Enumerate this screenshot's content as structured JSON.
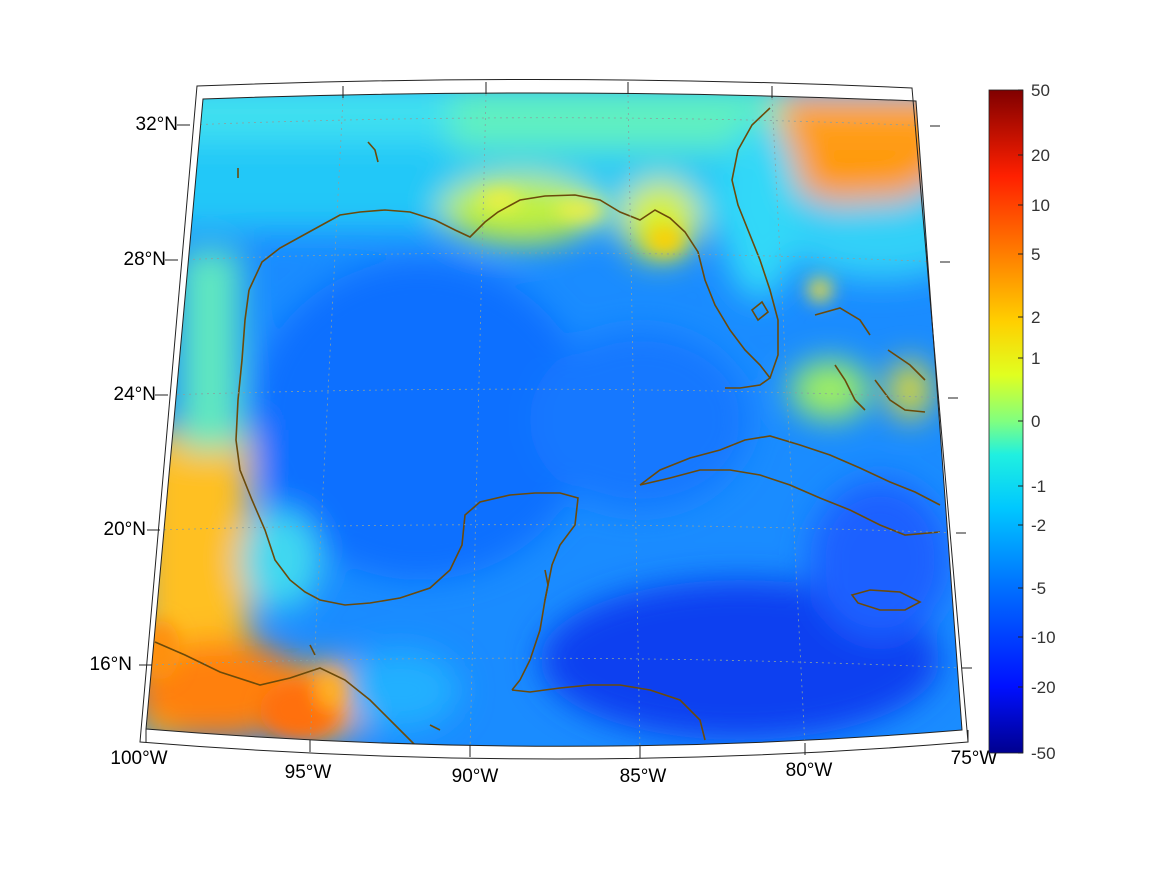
{
  "map": {
    "projection": "conic",
    "lon_range": [
      -100,
      -75
    ],
    "lat_range": [
      14,
      33
    ],
    "lon_ticks": [
      {
        "value": -100,
        "label": "100°W"
      },
      {
        "value": -95,
        "label": "95°W"
      },
      {
        "value": -90,
        "label": "90°W"
      },
      {
        "value": -85,
        "label": "85°W"
      },
      {
        "value": -80,
        "label": "80°W"
      },
      {
        "value": -75,
        "label": "75°W"
      }
    ],
    "lat_ticks": [
      {
        "value": 32,
        "label": "32°N"
      },
      {
        "value": 28,
        "label": "28°N"
      },
      {
        "value": 24,
        "label": "24°N"
      },
      {
        "value": 20,
        "label": "20°N"
      },
      {
        "value": 16,
        "label": "16°N"
      }
    ],
    "grid": true,
    "coastline_color": "#6b4a0a"
  },
  "colorbar": {
    "colormap": "jet",
    "scale": "symmetric-log",
    "range": [
      -50,
      50
    ],
    "placement": "right",
    "ticks": [
      "50",
      "20",
      "10",
      "5",
      "2",
      "1",
      "0",
      "-1",
      "-2",
      "-5",
      "-10",
      "-20",
      "-50"
    ]
  }
}
